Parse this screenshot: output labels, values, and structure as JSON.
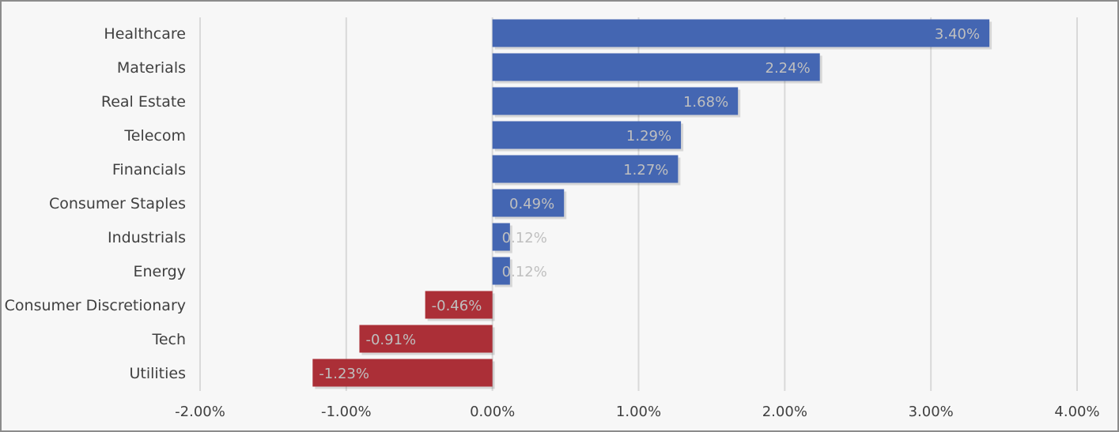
{
  "chart_data": {
    "type": "bar",
    "orientation": "horizontal",
    "title": "",
    "xlabel": "",
    "ylabel": "",
    "xlim": [
      -0.02,
      0.04
    ],
    "x_ticks": [
      "-2.00%",
      "-1.00%",
      "0.00%",
      "1.00%",
      "2.00%",
      "3.00%",
      "4.00%"
    ],
    "grid": true,
    "legend": "none",
    "categories": [
      "Healthcare",
      "Materials",
      "Real Estate",
      "Telecom",
      "Financials",
      "Consumer Staples",
      "Industrials",
      "Energy",
      "Consumer Discretionary",
      "Tech",
      "Utilities"
    ],
    "values": [
      0.034,
      0.0224,
      0.0168,
      0.0129,
      0.0127,
      0.0049,
      0.0012,
      0.0012,
      -0.0046,
      -0.0091,
      -0.0123
    ],
    "data_labels": [
      "3.40%",
      "2.24%",
      "1.68%",
      "1.29%",
      "1.27%",
      "0.49%",
      "0.12%",
      "0.12%",
      "-0.46%",
      "-0.91%",
      "-1.23%"
    ],
    "colors": {
      "positive": "#4466b2",
      "negative": "#ab2f37"
    }
  }
}
